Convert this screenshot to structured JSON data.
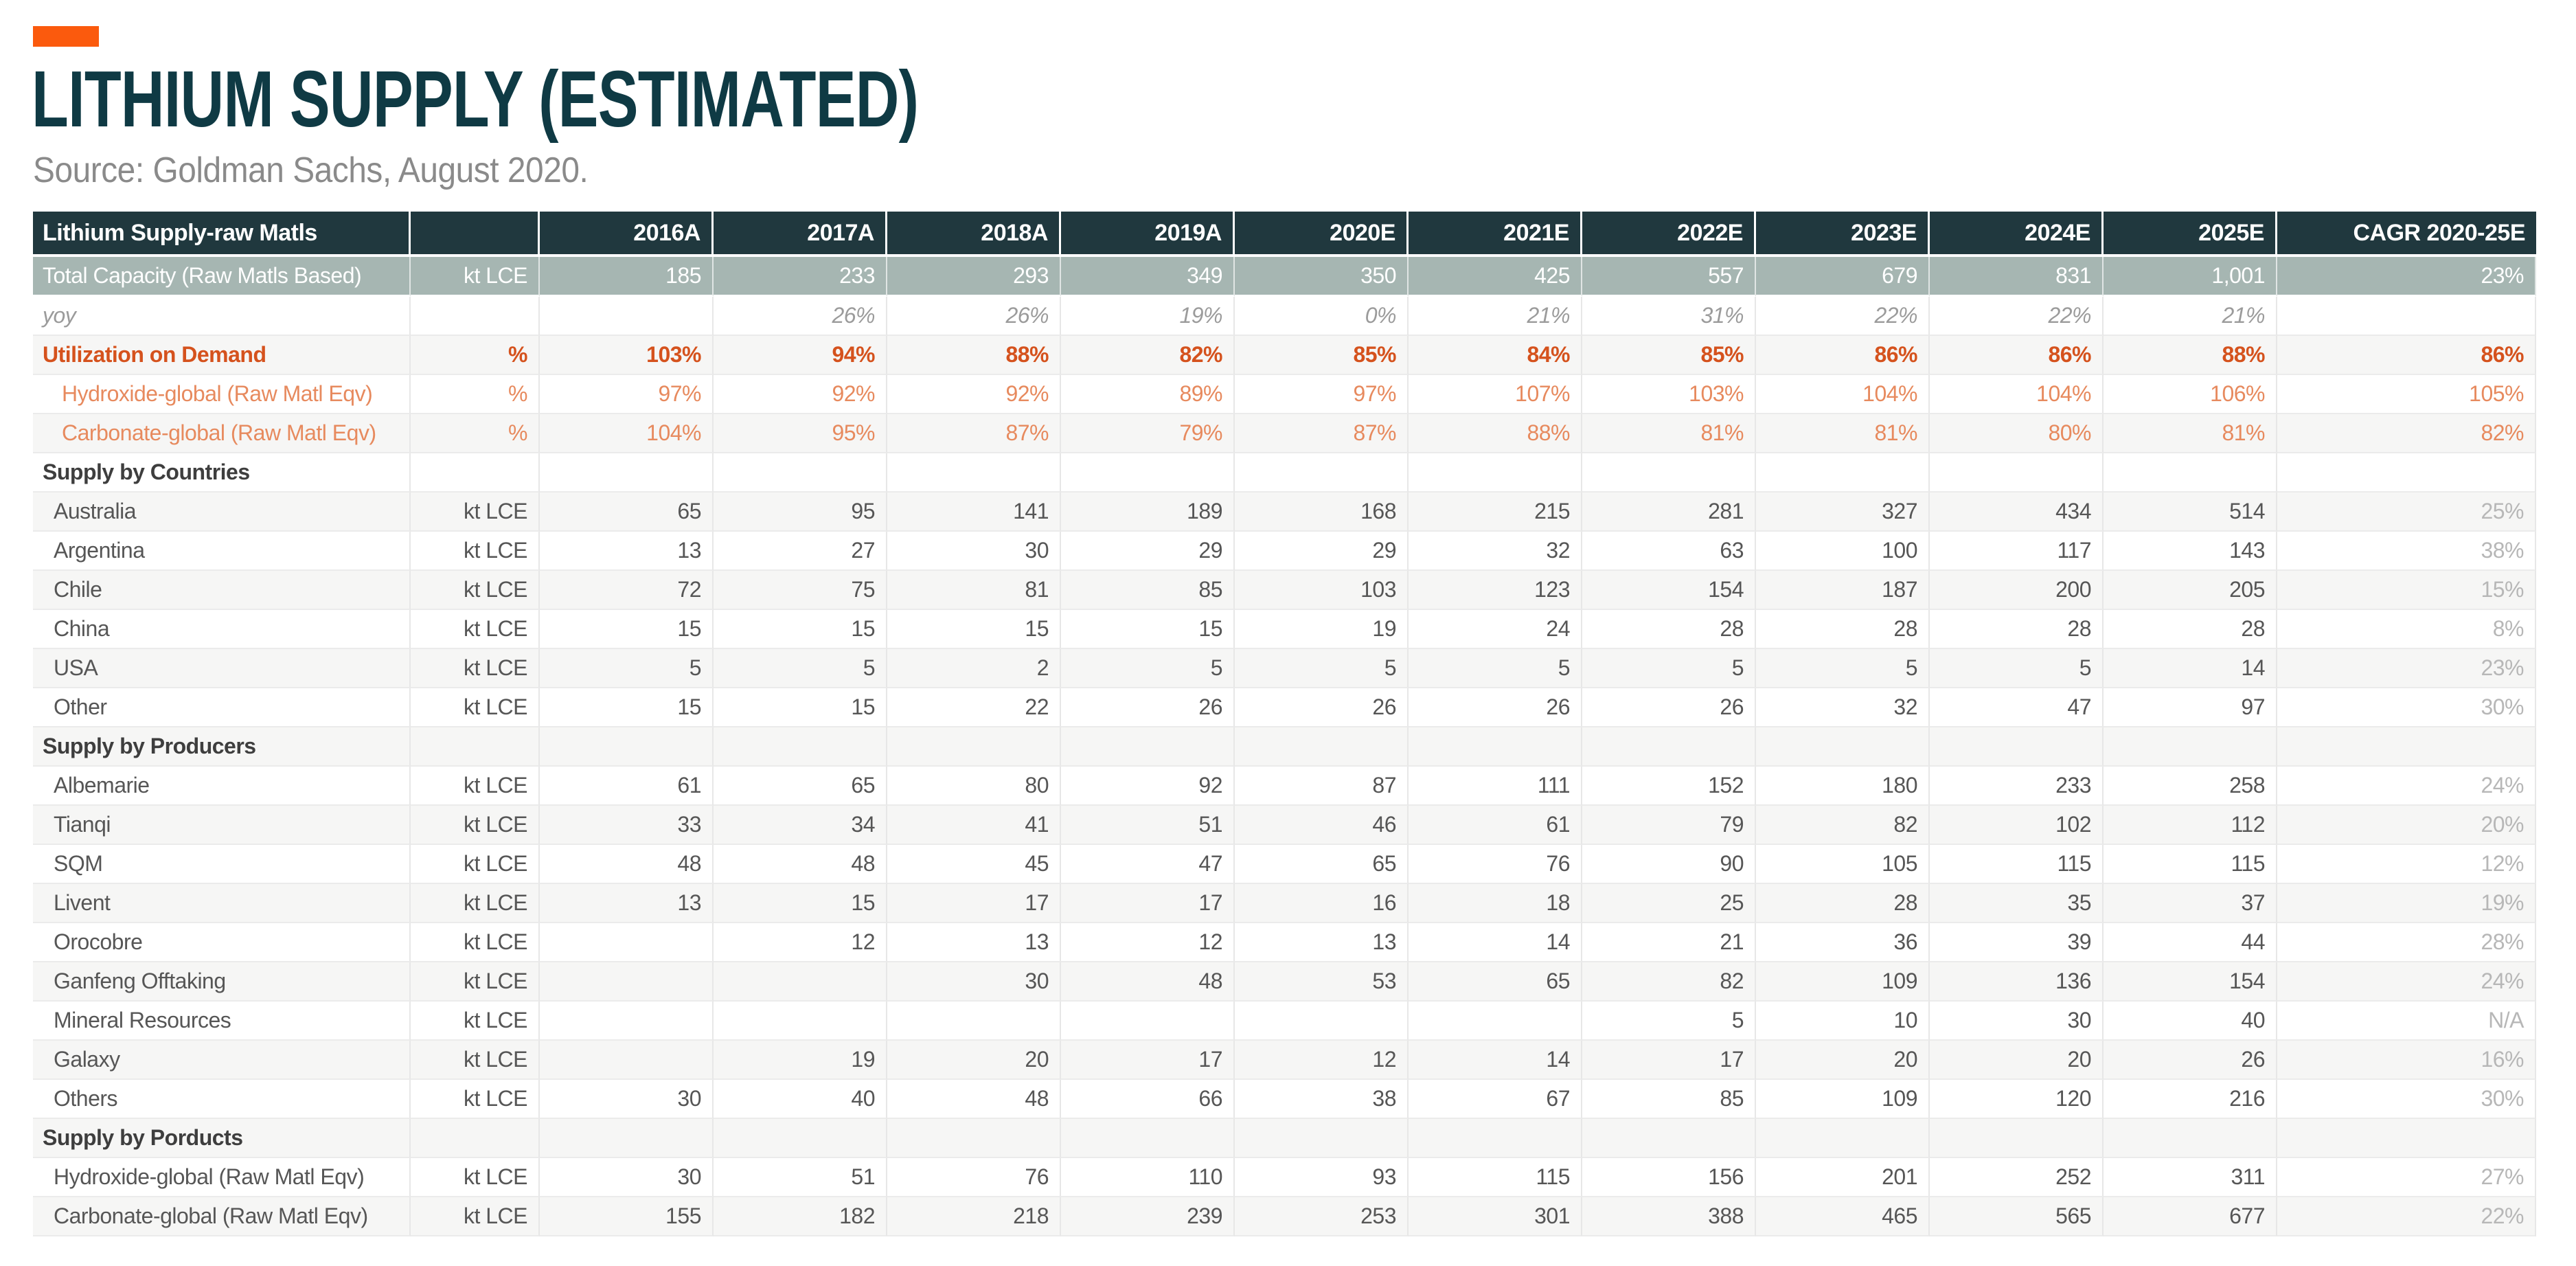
{
  "header": {
    "title": "LITHIUM SUPPLY (ESTIMATED)",
    "source": "Source: Goldman Sachs, August 2020.",
    "accent_color": "#fb5a0d",
    "title_color": "#0f3a44"
  },
  "colors": {
    "table_header_bg": "#20383e",
    "capacity_row_bg": "#a6b6b2",
    "stripe_bg": "#f6f6f5",
    "utilization_orange": "#d5521d",
    "sub_orange": "#e78a5e",
    "cagr_gray": "#b7b7b7",
    "body_text": "#565656"
  },
  "chart_data": {
    "type": "table",
    "title": "Lithium Supply-raw Matls",
    "columns": [
      "Lithium Supply-raw Matls",
      "",
      "2016A",
      "2017A",
      "2018A",
      "2019A",
      "2020E",
      "2021E",
      "2022E",
      "2023E",
      "2024E",
      "2025E",
      "CAGR 2020-25E"
    ],
    "rows": [
      {
        "label": "Total Capacity (Raw Matls Based)",
        "unit": "kt LCE",
        "values": [
          "185",
          "233",
          "293",
          "349",
          "350",
          "425",
          "557",
          "679",
          "831",
          "1,001"
        ],
        "cagr": "23%",
        "style": "capacity"
      },
      {
        "label": "yoy",
        "unit": "",
        "values": [
          "",
          "26%",
          "26%",
          "19%",
          "0%",
          "21%",
          "31%",
          "22%",
          "22%",
          "21%"
        ],
        "cagr": "",
        "style": "yoy"
      },
      {
        "label": "Utilization on Demand",
        "unit": "%",
        "values": [
          "103%",
          "94%",
          "88%",
          "82%",
          "85%",
          "84%",
          "85%",
          "86%",
          "86%",
          "88%"
        ],
        "cagr": "86%",
        "style": "utilization"
      },
      {
        "label": "Hydroxide-global (Raw Matl Eqv)",
        "unit": "%",
        "values": [
          "97%",
          "92%",
          "92%",
          "89%",
          "97%",
          "107%",
          "103%",
          "104%",
          "104%",
          "106%"
        ],
        "cagr": "105%",
        "style": "orange-sub"
      },
      {
        "label": "Carbonate-global (Raw Matl Eqv)",
        "unit": "%",
        "values": [
          "104%",
          "95%",
          "87%",
          "79%",
          "87%",
          "88%",
          "81%",
          "81%",
          "80%",
          "81%"
        ],
        "cagr": "82%",
        "style": "orange-sub"
      },
      {
        "label": "Supply by Countries",
        "unit": "",
        "values": [
          "",
          "",
          "",
          "",
          "",
          "",
          "",
          "",
          "",
          ""
        ],
        "cagr": "",
        "style": "section"
      },
      {
        "label": "Australia",
        "unit": "kt LCE",
        "values": [
          "65",
          "95",
          "141",
          "189",
          "168",
          "215",
          "281",
          "327",
          "434",
          "514"
        ],
        "cagr": "25%",
        "style": "item"
      },
      {
        "label": "Argentina",
        "unit": "kt LCE",
        "values": [
          "13",
          "27",
          "30",
          "29",
          "29",
          "32",
          "63",
          "100",
          "117",
          "143"
        ],
        "cagr": "38%",
        "style": "item"
      },
      {
        "label": "Chile",
        "unit": "kt LCE",
        "values": [
          "72",
          "75",
          "81",
          "85",
          "103",
          "123",
          "154",
          "187",
          "200",
          "205"
        ],
        "cagr": "15%",
        "style": "item"
      },
      {
        "label": "China",
        "unit": "kt LCE",
        "values": [
          "15",
          "15",
          "15",
          "15",
          "19",
          "24",
          "28",
          "28",
          "28",
          "28"
        ],
        "cagr": "8%",
        "style": "item"
      },
      {
        "label": "USA",
        "unit": "kt LCE",
        "values": [
          "5",
          "5",
          "2",
          "5",
          "5",
          "5",
          "5",
          "5",
          "5",
          "14"
        ],
        "cagr": "23%",
        "style": "item"
      },
      {
        "label": "Other",
        "unit": "kt LCE",
        "values": [
          "15",
          "15",
          "22",
          "26",
          "26",
          "26",
          "26",
          "32",
          "47",
          "97"
        ],
        "cagr": "30%",
        "style": "item"
      },
      {
        "label": "Supply by Producers",
        "unit": "",
        "values": [
          "",
          "",
          "",
          "",
          "",
          "",
          "",
          "",
          "",
          ""
        ],
        "cagr": "",
        "style": "section"
      },
      {
        "label": "Albemarie",
        "unit": "kt LCE",
        "values": [
          "61",
          "65",
          "80",
          "92",
          "87",
          "111",
          "152",
          "180",
          "233",
          "258"
        ],
        "cagr": "24%",
        "style": "item"
      },
      {
        "label": "Tianqi",
        "unit": "kt LCE",
        "values": [
          "33",
          "34",
          "41",
          "51",
          "46",
          "61",
          "79",
          "82",
          "102",
          "112"
        ],
        "cagr": "20%",
        "style": "item"
      },
      {
        "label": "SQM",
        "unit": "kt LCE",
        "values": [
          "48",
          "48",
          "45",
          "47",
          "65",
          "76",
          "90",
          "105",
          "115",
          "115"
        ],
        "cagr": "12%",
        "style": "item"
      },
      {
        "label": "Livent",
        "unit": "kt LCE",
        "values": [
          "13",
          "15",
          "17",
          "17",
          "16",
          "18",
          "25",
          "28",
          "35",
          "37"
        ],
        "cagr": "19%",
        "style": "item"
      },
      {
        "label": "Orocobre",
        "unit": "kt LCE",
        "values": [
          "",
          "12",
          "13",
          "12",
          "13",
          "14",
          "21",
          "36",
          "39",
          "44"
        ],
        "cagr": "28%",
        "style": "item"
      },
      {
        "label": "Ganfeng Offtaking",
        "unit": "kt LCE",
        "values": [
          "",
          "",
          "30",
          "48",
          "53",
          "65",
          "82",
          "109",
          "136",
          "154"
        ],
        "cagr": "24%",
        "style": "item"
      },
      {
        "label": "Mineral Resources",
        "unit": "kt LCE",
        "values": [
          "",
          "",
          "",
          "",
          "",
          "",
          "5",
          "10",
          "30",
          "40"
        ],
        "cagr": "N/A",
        "style": "item"
      },
      {
        "label": "Galaxy",
        "unit": "kt LCE",
        "values": [
          "",
          "19",
          "20",
          "17",
          "12",
          "14",
          "17",
          "20",
          "20",
          "26"
        ],
        "cagr": "16%",
        "style": "item"
      },
      {
        "label": "Others",
        "unit": "kt LCE",
        "values": [
          "30",
          "40",
          "48",
          "66",
          "38",
          "67",
          "85",
          "109",
          "120",
          "216"
        ],
        "cagr": "30%",
        "style": "item"
      },
      {
        "label": "Supply by Porducts",
        "unit": "",
        "values": [
          "",
          "",
          "",
          "",
          "",
          "",
          "",
          "",
          "",
          ""
        ],
        "cagr": "",
        "style": "section"
      },
      {
        "label": "Hydroxide-global (Raw Matl Eqv)",
        "unit": "kt LCE",
        "values": [
          "30",
          "51",
          "76",
          "110",
          "93",
          "115",
          "156",
          "201",
          "252",
          "311"
        ],
        "cagr": "27%",
        "style": "item"
      },
      {
        "label": "Carbonate-global (Raw Matl Eqv)",
        "unit": "kt LCE",
        "values": [
          "155",
          "182",
          "218",
          "239",
          "253",
          "301",
          "388",
          "465",
          "565",
          "677"
        ],
        "cagr": "22%",
        "style": "item"
      }
    ]
  }
}
